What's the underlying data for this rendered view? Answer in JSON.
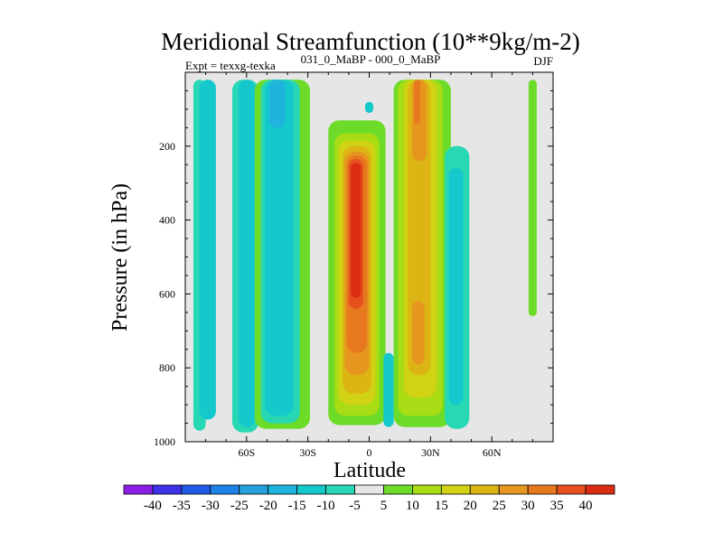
{
  "chart_data": {
    "type": "heatmap",
    "title": "Meridional Streamfunction (10**9kg/m-2)",
    "experiment": "Expt = texxg-texka",
    "comparison": "031_0_MaBP - 000_0_MaBP",
    "season": "DJF",
    "xlabel": "Latitude",
    "ylabel": "Pressure (in hPa)",
    "xlim": [
      -90,
      90
    ],
    "ylim": [
      1000,
      0
    ],
    "x_ticks": [
      {
        "value": -60,
        "label": "60S"
      },
      {
        "value": -30,
        "label": "30S"
      },
      {
        "value": 0,
        "label": "0"
      },
      {
        "value": 30,
        "label": "30N"
      },
      {
        "value": 60,
        "label": "60N"
      }
    ],
    "y_ticks": [
      {
        "value": 200,
        "label": "200"
      },
      {
        "value": 400,
        "label": "400"
      },
      {
        "value": 600,
        "label": "600"
      },
      {
        "value": 800,
        "label": "800"
      },
      {
        "value": 1000,
        "label": "1000"
      }
    ],
    "colorbar": {
      "levels": [
        "-40",
        "-35",
        "-30",
        "-25",
        "-20",
        "-15",
        "-10",
        "-5",
        "5",
        "10",
        "15",
        "20",
        "25",
        "30",
        "35",
        "40"
      ],
      "colors": [
        "#8c1fe6",
        "#3c32e6",
        "#1e5ae6",
        "#1e82e6",
        "#28a0dc",
        "#1eb4dc",
        "#14c8cc",
        "#28d7b4",
        "#e6e6e6",
        "#6cdc28",
        "#a8dc14",
        "#d2d214",
        "#dcb414",
        "#e6961e",
        "#e6781e",
        "#e6501e",
        "#dc2d14"
      ]
    },
    "bands": [
      {
        "lat": [
          -86,
          -80
        ],
        "p": [
          20,
          970
        ],
        "level": "-5"
      },
      {
        "lat": [
          -83,
          -75
        ],
        "p": [
          20,
          940
        ],
        "level": "-10"
      },
      {
        "lat": [
          -67,
          -54
        ],
        "p": [
          20,
          975
        ],
        "level": "-5"
      },
      {
        "lat": [
          -64,
          -56
        ],
        "p": [
          20,
          960
        ],
        "level": "-10"
      },
      {
        "lat": [
          -56,
          -29
        ],
        "p": [
          20,
          965
        ],
        "level": "5"
      },
      {
        "lat": [
          -53,
          -34
        ],
        "p": [
          20,
          950
        ],
        "level": "-5"
      },
      {
        "lat": [
          -51,
          -37
        ],
        "p": [
          20,
          930
        ],
        "level": "-10"
      },
      {
        "lat": [
          -49,
          -41
        ],
        "p": [
          20,
          150
        ],
        "level": "-15"
      },
      {
        "lat": [
          -2,
          2
        ],
        "p": [
          80,
          110
        ],
        "level": "-10"
      },
      {
        "lat": [
          -20,
          8
        ],
        "p": [
          130,
          955
        ],
        "level": "5"
      },
      {
        "lat": [
          -17,
          5
        ],
        "p": [
          165,
          930
        ],
        "level": "10"
      },
      {
        "lat": [
          -15,
          3
        ],
        "p": [
          185,
          900
        ],
        "level": "15"
      },
      {
        "lat": [
          -13,
          1
        ],
        "p": [
          200,
          870
        ],
        "level": "20"
      },
      {
        "lat": [
          -12,
          0
        ],
        "p": [
          215,
          820
        ],
        "level": "25"
      },
      {
        "lat": [
          -11,
          -1
        ],
        "p": [
          225,
          760
        ],
        "level": "30"
      },
      {
        "lat": [
          -10,
          -3
        ],
        "p": [
          235,
          640
        ],
        "level": "35"
      },
      {
        "lat": [
          -9,
          -4
        ],
        "p": [
          245,
          610
        ],
        "level": "40"
      },
      {
        "lat": [
          7,
          12
        ],
        "p": [
          760,
          960
        ],
        "level": "-10"
      },
      {
        "lat": [
          12,
          40
        ],
        "p": [
          20,
          960
        ],
        "level": "5"
      },
      {
        "lat": [
          14,
          36
        ],
        "p": [
          20,
          930
        ],
        "level": "10"
      },
      {
        "lat": [
          17,
          33
        ],
        "p": [
          20,
          880
        ],
        "level": "15"
      },
      {
        "lat": [
          19,
          30
        ],
        "p": [
          20,
          820
        ],
        "level": "20"
      },
      {
        "lat": [
          21,
          28
        ],
        "p": [
          20,
          240
        ],
        "level": "25"
      },
      {
        "lat": [
          21,
          27
        ],
        "p": [
          620,
          790
        ],
        "level": "25"
      },
      {
        "lat": [
          22,
          25
        ],
        "p": [
          20,
          140
        ],
        "level": "30"
      },
      {
        "lat": [
          37,
          49
        ],
        "p": [
          200,
          965
        ],
        "level": "-5"
      },
      {
        "lat": [
          39,
          46
        ],
        "p": [
          260,
          900
        ],
        "level": "-10"
      },
      {
        "lat": [
          78,
          82
        ],
        "p": [
          20,
          660
        ],
        "level": "5"
      }
    ]
  }
}
